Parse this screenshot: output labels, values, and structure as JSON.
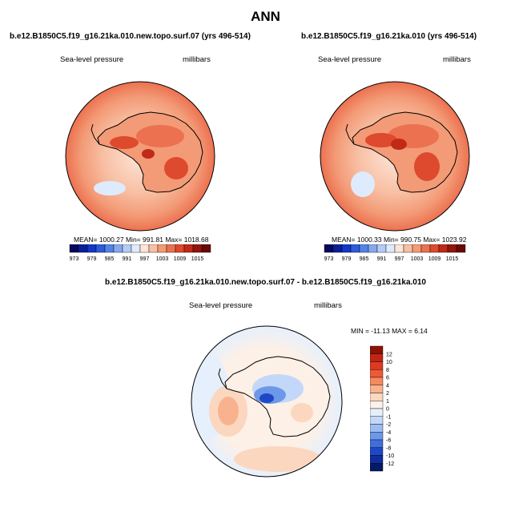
{
  "page_title": "ANN",
  "chart_data": [
    {
      "type": "heatmap",
      "projection": "south-polar-stereographic",
      "title": "b.e12.B1850C5.f19_g16.21ka.010.new.topo.surf.07 (yrs 496-514)",
      "left_label": "Sea-level pressure",
      "right_label": "millibars",
      "stats": {
        "text": "MEAN= 1000.27  Min= 991.81  Max= 1018.68",
        "mean": 1000.27,
        "min": 991.81,
        "max": 1018.68
      },
      "colorbar": {
        "orientation": "horizontal",
        "ticks": [
          "973",
          "979",
          "985",
          "991",
          "997",
          "1003",
          "1009",
          "1015"
        ],
        "colors": [
          "#050a5e",
          "#0b1f99",
          "#1238c8",
          "#2f5bd9",
          "#5682e6",
          "#86a8ef",
          "#b4cbf5",
          "#deebfc",
          "#fde5d8",
          "#f8bfa3",
          "#f39a76",
          "#ec7150",
          "#dd4a2d",
          "#c02a17",
          "#93150b",
          "#6a0a05"
        ]
      }
    },
    {
      "type": "heatmap",
      "projection": "south-polar-stereographic",
      "title": "b.e12.B1850C5.f19_g16.21ka.010 (yrs 496-514)",
      "left_label": "Sea-level pressure",
      "right_label": "millibars",
      "stats": {
        "text": "MEAN= 1000.33  Min= 990.75  Max= 1023.92",
        "mean": 1000.33,
        "min": 990.75,
        "max": 1023.92
      },
      "colorbar": {
        "orientation": "horizontal",
        "ticks": [
          "973",
          "979",
          "985",
          "991",
          "997",
          "1003",
          "1009",
          "1015"
        ],
        "colors": [
          "#050a5e",
          "#0b1f99",
          "#1238c8",
          "#2f5bd9",
          "#5682e6",
          "#86a8ef",
          "#b4cbf5",
          "#deebfc",
          "#fde5d8",
          "#f8bfa3",
          "#f39a76",
          "#ec7150",
          "#dd4a2d",
          "#c02a17",
          "#93150b",
          "#6a0a05"
        ]
      }
    },
    {
      "type": "heatmap",
      "projection": "south-polar-stereographic",
      "title": "b.e12.B1850C5.f19_g16.21ka.010.new.topo.surf.07 - b.e12.B1850C5.f19_g16.21ka.010",
      "left_label": "Sea-level pressure",
      "right_label": "millibars",
      "stats": {
        "text": "MIN = -11.13 MAX =   6.14",
        "min": -11.13,
        "max": 6.14
      },
      "colorbar": {
        "orientation": "vertical",
        "ticks": [
          "12",
          "10",
          "8",
          "6",
          "4",
          "2",
          "1",
          "0",
          "-1",
          "-2",
          "-4",
          "-6",
          "-8",
          "-10",
          "-12"
        ],
        "colors": [
          "#8c1205",
          "#c02616",
          "#dd3a22",
          "#ee5a36",
          "#f48a5e",
          "#f8b38e",
          "#fbd7c0",
          "#fdf0e6",
          "#e6f0fd",
          "#c3d8f8",
          "#9cbdf2",
          "#6d98ea",
          "#3f6fdc",
          "#1f48c4",
          "#0e2e9e",
          "#051a66"
        ]
      }
    }
  ]
}
